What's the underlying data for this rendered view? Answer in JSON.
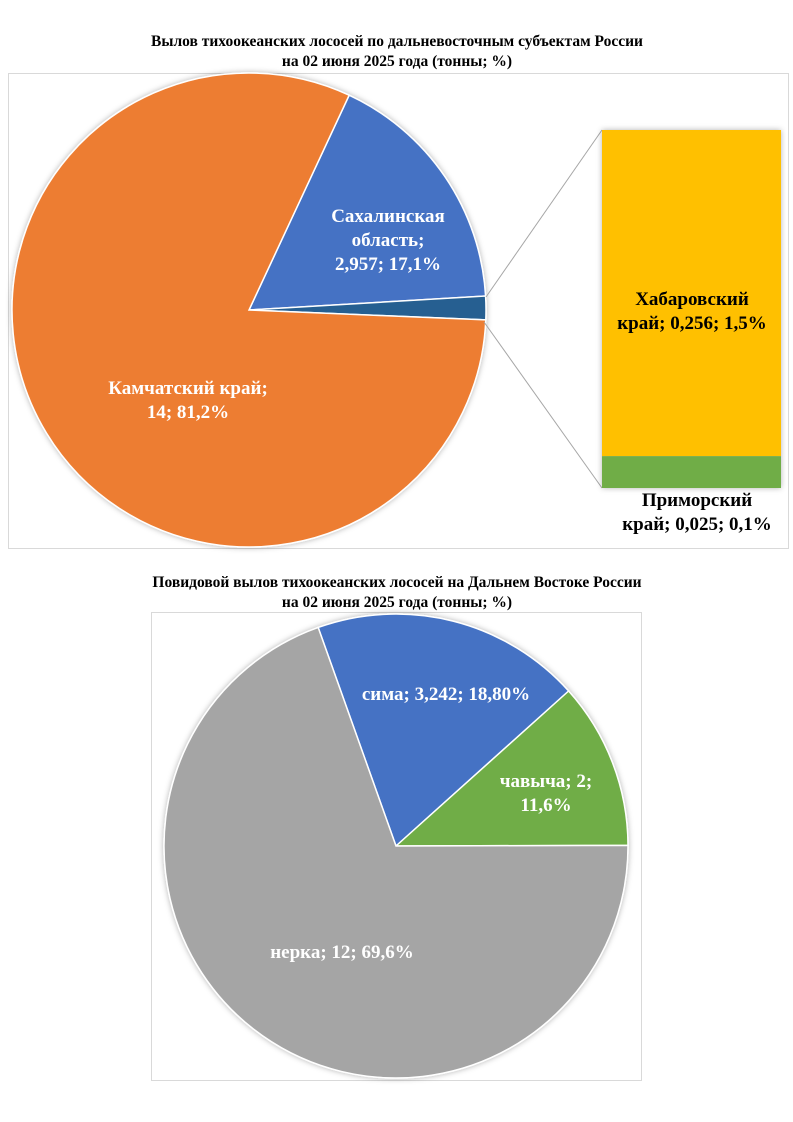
{
  "chart_data": [
    {
      "type": "pie",
      "subtype": "bar-of-pie",
      "title": [
        "Вылов тихоокеанских лососей по дальневосточным субъектам России",
        "на 02 июня 2025 года (тонны; %)"
      ],
      "slices": [
        {
          "name": "Сахалинская область",
          "value": 2.957,
          "percent": 17.1,
          "color": "#4472C4",
          "label": [
            "Сахалинская",
            "область;",
            "2,957; 17,1%"
          ]
        },
        {
          "name": "Прочие",
          "value": 0.281,
          "percent": 1.6,
          "color": "#255E91",
          "label": []
        },
        {
          "name": "Камчатский край",
          "value": 14,
          "percent": 81.2,
          "color": "#ED7D31",
          "label": [
            "Камчатский край;",
            "14; 81,2%"
          ]
        }
      ],
      "secondary": [
        {
          "name": "Хабаровский край",
          "value": 0.256,
          "percent": 1.5,
          "color": "#FFC000",
          "label": [
            "Хабаровский",
            "край; 0,256; 1,5%"
          ]
        },
        {
          "name": "Приморский край",
          "value": 0.025,
          "percent": 0.1,
          "color": "#70AD47",
          "label": [
            "Приморский",
            "край; 0,025; 0,1%"
          ]
        }
      ]
    },
    {
      "type": "pie",
      "title": [
        "Повидовой вылов тихоокеанских лососей на Дальнем Востоке России",
        "на 02 июня 2025 года (тонны; %)"
      ],
      "slices": [
        {
          "name": "сима",
          "value": 3.242,
          "percent": 18.8,
          "color": "#4472C4",
          "label": [
            "сима; 3,242; 18,80%"
          ]
        },
        {
          "name": "чавыча",
          "value": 2,
          "percent": 11.6,
          "color": "#70AD47",
          "label": [
            "чавыча; 2;",
            "11,6%"
          ]
        },
        {
          "name": "нерка",
          "value": 12,
          "percent": 69.6,
          "color": "#A5A5A5",
          "label": [
            "нерка; 12; 69,6%"
          ]
        }
      ]
    }
  ]
}
